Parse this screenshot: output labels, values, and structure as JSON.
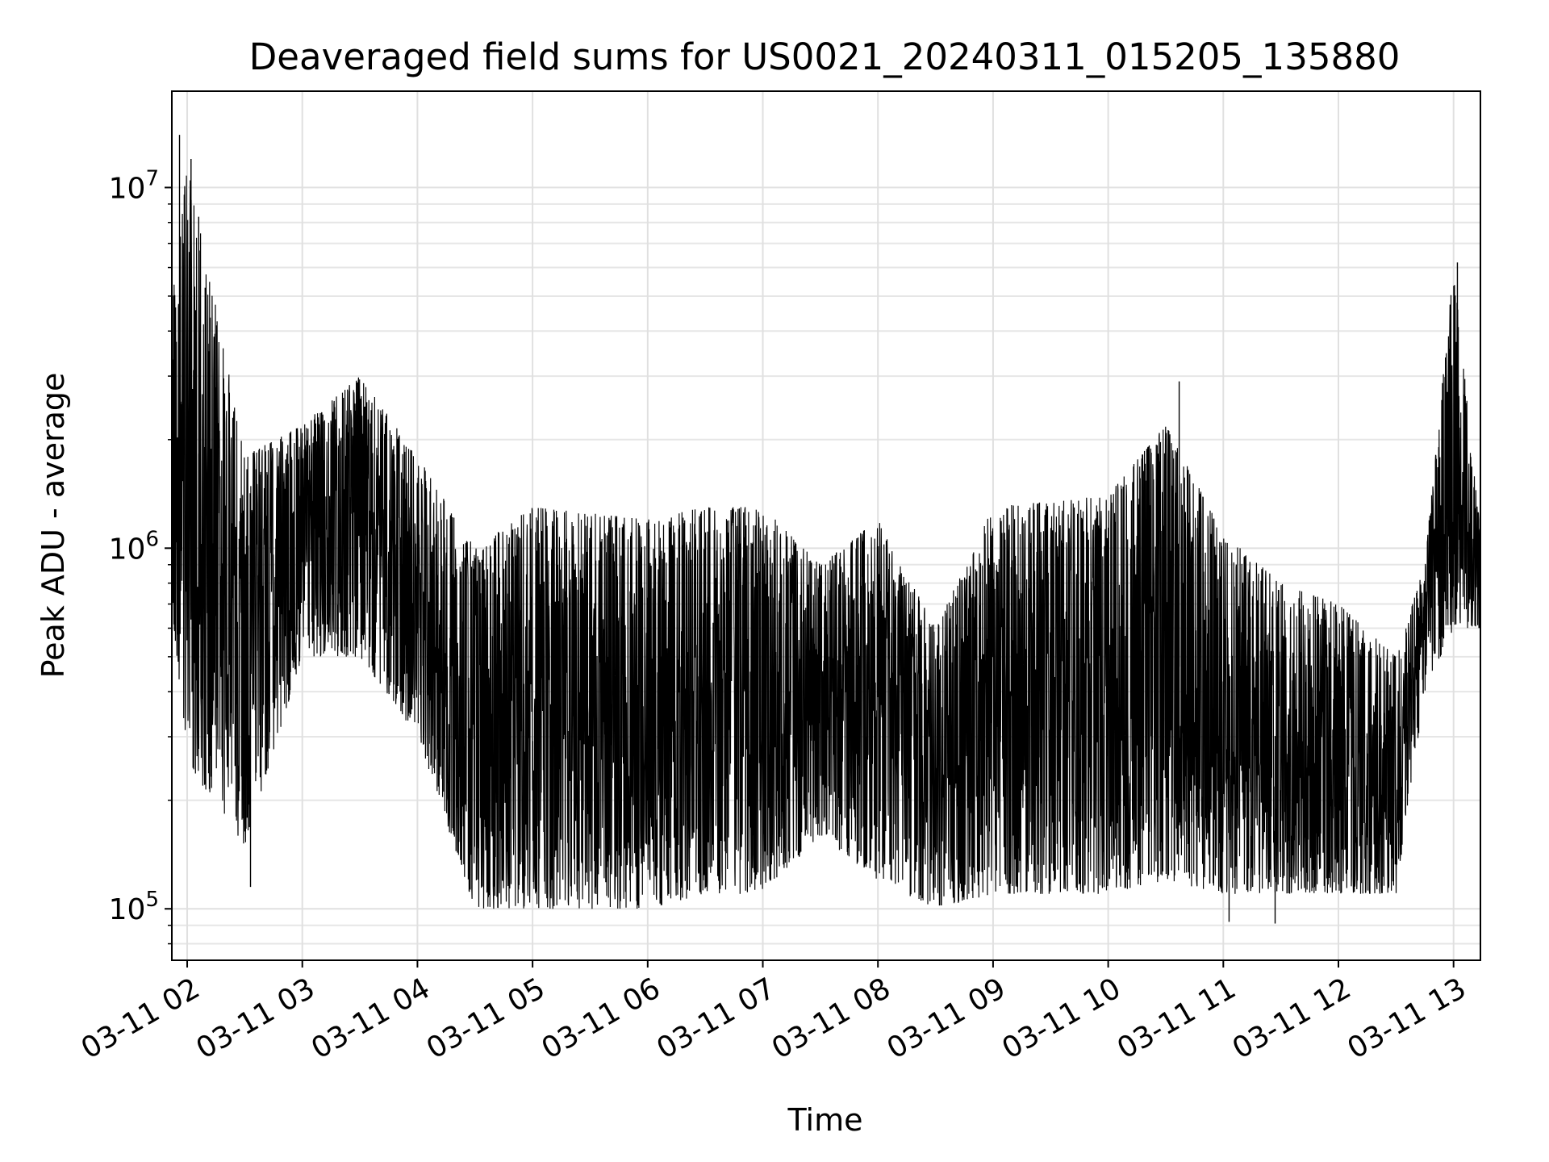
{
  "chart_data": {
    "type": "line",
    "title": "Deaveraged field sums for US0021_20240311_015205_135880",
    "xlabel": "Time",
    "ylabel": "Peak ADU - average",
    "xscale": "time",
    "yscale": "log",
    "xlim": [
      "2024-03-11 01:52",
      "2024-03-11 13:14"
    ],
    "ylim": [
      72000,
      18500000
    ],
    "grid": true,
    "legend": "none",
    "x_ticks": [
      {
        "label": "03-11 02",
        "time": "2024-03-11 02:00"
      },
      {
        "label": "03-11 03",
        "time": "2024-03-11 03:00"
      },
      {
        "label": "03-11 04",
        "time": "2024-03-11 04:00"
      },
      {
        "label": "03-11 05",
        "time": "2024-03-11 05:00"
      },
      {
        "label": "03-11 06",
        "time": "2024-03-11 06:00"
      },
      {
        "label": "03-11 07",
        "time": "2024-03-11 07:00"
      },
      {
        "label": "03-11 08",
        "time": "2024-03-11 08:00"
      },
      {
        "label": "03-11 09",
        "time": "2024-03-11 09:00"
      },
      {
        "label": "03-11 10",
        "time": "2024-03-11 10:00"
      },
      {
        "label": "03-11 11",
        "time": "2024-03-11 11:00"
      },
      {
        "label": "03-11 12",
        "time": "2024-03-11 12:00"
      },
      {
        "label": "03-11 13",
        "time": "2024-03-11 13:00"
      }
    ],
    "y_ticks": [
      {
        "base": "10",
        "exp": "5",
        "value": 100000
      },
      {
        "base": "10",
        "exp": "6",
        "value": 1000000
      },
      {
        "base": "10",
        "exp": "7",
        "value": 10000000
      }
    ],
    "series": [
      {
        "color": "#000000",
        "envelope_note": "dense noisy signal; min/max per time segment",
        "envelope": [
          {
            "t": "2024-03-11 01:52",
            "low": 700000,
            "high": 4800000
          },
          {
            "t": "2024-03-11 02:00",
            "low": 250000,
            "high": 12000000
          },
          {
            "t": "2024-03-11 02:30",
            "low": 150000,
            "high": 1800000
          },
          {
            "t": "2024-03-11 03:00",
            "low": 500000,
            "high": 2200000
          },
          {
            "t": "2024-03-11 03:30",
            "low": 500000,
            "high": 3000000
          },
          {
            "t": "2024-03-11 04:00",
            "low": 300000,
            "high": 1800000
          },
          {
            "t": "2024-03-11 04:30",
            "low": 100000,
            "high": 1000000
          },
          {
            "t": "2024-03-11 05:00",
            "low": 100000,
            "high": 1300000
          },
          {
            "t": "2024-03-11 05:30",
            "low": 100000,
            "high": 1250000
          },
          {
            "t": "2024-03-11 06:00",
            "low": 100000,
            "high": 1200000
          },
          {
            "t": "2024-03-11 06:30",
            "low": 110000,
            "high": 1300000
          },
          {
            "t": "2024-03-11 07:00",
            "low": 110000,
            "high": 1300000
          },
          {
            "t": "2024-03-11 07:30",
            "low": 160000,
            "high": 900000
          },
          {
            "t": "2024-03-11 08:00",
            "low": 120000,
            "high": 1200000
          },
          {
            "t": "2024-03-11 08:30",
            "low": 100000,
            "high": 600000
          },
          {
            "t": "2024-03-11 09:00",
            "low": 110000,
            "high": 1300000
          },
          {
            "t": "2024-03-11 09:30",
            "low": 110000,
            "high": 1350000
          },
          {
            "t": "2024-03-11 10:00",
            "low": 110000,
            "high": 1400000
          },
          {
            "t": "2024-03-11 10:30",
            "low": 120000,
            "high": 2200000
          },
          {
            "t": "2024-03-11 11:00",
            "low": 110000,
            "high": 1100000
          },
          {
            "t": "2024-03-11 11:30",
            "low": 110000,
            "high": 800000
          },
          {
            "t": "2024-03-11 12:00",
            "low": 110000,
            "high": 700000
          },
          {
            "t": "2024-03-11 12:30",
            "low": 110000,
            "high": 500000
          },
          {
            "t": "2024-03-11 12:45",
            "low": 400000,
            "high": 900000
          },
          {
            "t": "2024-03-11 13:00",
            "low": 600000,
            "high": 6000000
          },
          {
            "t": "2024-03-11 13:14",
            "low": 600000,
            "high": 1100000
          }
        ],
        "spikes": [
          {
            "t": "2024-03-11 01:56",
            "value": 14000000
          },
          {
            "t": "2024-03-11 02:02",
            "value": 12000000
          },
          {
            "t": "2024-03-11 02:06",
            "value": 8300000
          },
          {
            "t": "2024-03-11 10:37",
            "value": 2900000
          },
          {
            "t": "2024-03-11 13:02",
            "value": 6200000
          },
          {
            "t": "2024-03-11 02:33",
            "value": 115000
          },
          {
            "t": "2024-03-11 11:03",
            "value": 92000
          },
          {
            "t": "2024-03-11 11:27",
            "value": 91000
          }
        ]
      }
    ]
  }
}
